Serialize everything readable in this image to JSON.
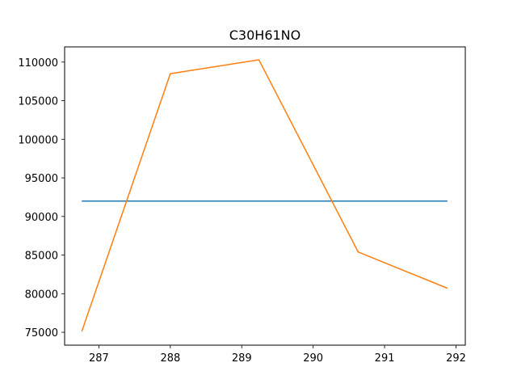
{
  "chart_data": {
    "type": "line",
    "title": "C30H61NO",
    "xlabel": "",
    "ylabel": "",
    "xlim": [
      286.52,
      292.13
    ],
    "ylim": [
      73330,
      111970
    ],
    "xticks": [
      287,
      288,
      289,
      290,
      291,
      292
    ],
    "yticks": [
      75000,
      80000,
      85000,
      90000,
      95000,
      100000,
      105000,
      110000
    ],
    "grid": false,
    "legend": "none",
    "series": [
      {
        "color": "#1f77b4",
        "x": [
          286.76,
          291.88
        ],
        "y": [
          92000,
          92000
        ]
      },
      {
        "color": "#ff7f0e",
        "x": [
          286.76,
          288.0,
          289.24,
          290.63,
          291.88
        ],
        "y": [
          75100,
          108500,
          110300,
          85400,
          80700
        ]
      }
    ]
  }
}
